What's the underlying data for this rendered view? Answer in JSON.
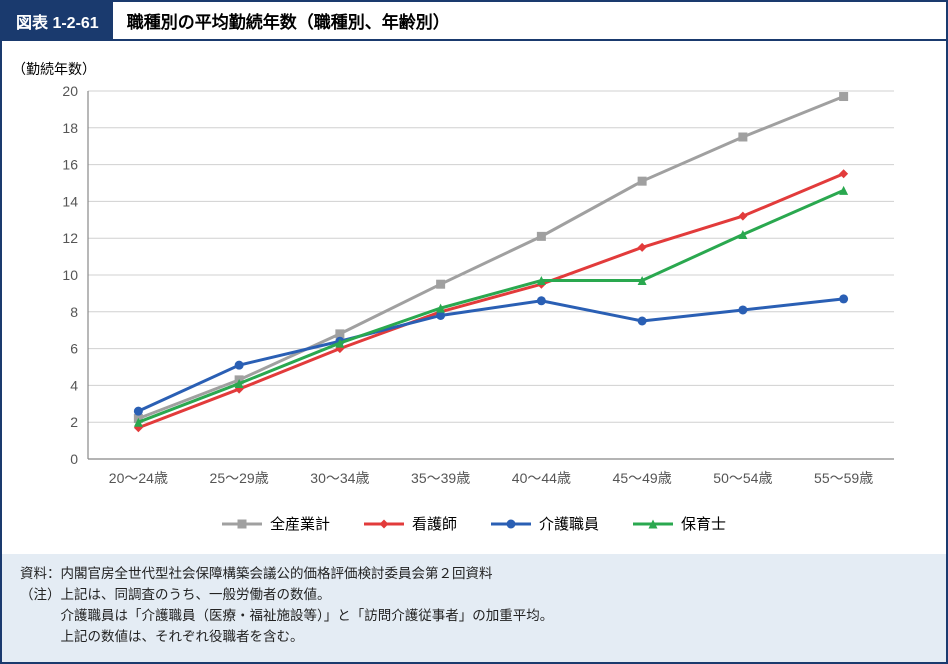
{
  "header": {
    "tag": "図表 1-2-61",
    "title": "職種別の平均勤続年数（職種別、年齢別）"
  },
  "chart": {
    "type": "line",
    "y_axis_title": "（勤続年数）",
    "categories": [
      "20～24歳",
      "25～29歳",
      "30～34歳",
      "35～39歳",
      "40～44歳",
      "45～49歳",
      "50～54歳",
      "55～59歳"
    ],
    "ylim": [
      0,
      20
    ],
    "ytick_step": 2,
    "background_color": "#ffffff",
    "grid_color": "#d0d0d0",
    "axis_color": "#888888",
    "label_fontsize": 14,
    "tick_fontsize": 14,
    "series": [
      {
        "key": "all",
        "label": "全産業計",
        "color": "#a0a0a0",
        "marker": "square",
        "values": [
          2.2,
          4.3,
          6.8,
          9.5,
          12.1,
          15.1,
          17.5,
          19.7
        ]
      },
      {
        "key": "nurse",
        "label": "看護師",
        "color": "#e23b3b",
        "marker": "diamond",
        "values": [
          1.7,
          3.8,
          6.0,
          8.0,
          9.5,
          11.5,
          13.2,
          15.5
        ]
      },
      {
        "key": "care",
        "label": "介護職員",
        "color": "#2a5fb4",
        "marker": "circle",
        "values": [
          2.6,
          5.1,
          6.4,
          7.8,
          8.6,
          7.5,
          8.1,
          8.7
        ]
      },
      {
        "key": "childcare",
        "label": "保育士",
        "color": "#2aa84f",
        "marker": "triangle",
        "values": [
          2.0,
          4.1,
          6.3,
          8.2,
          9.7,
          9.7,
          12.2,
          14.6
        ]
      }
    ],
    "line_width": 3,
    "marker_size": 9
  },
  "notes": {
    "source_label": "資料：",
    "source_text": "内閣官房全世代型社会保障構築会議公的価格評価検討委員会第２回資料",
    "note_label": "（注）",
    "note_lines": [
      "上記は、同調査のうち、一般労働者の数値。",
      "介護職員は「介護職員（医療・福祉施設等）」と「訪問介護従事者」の加重平均。",
      "上記の数値は、それぞれ役職者を含む。"
    ]
  }
}
